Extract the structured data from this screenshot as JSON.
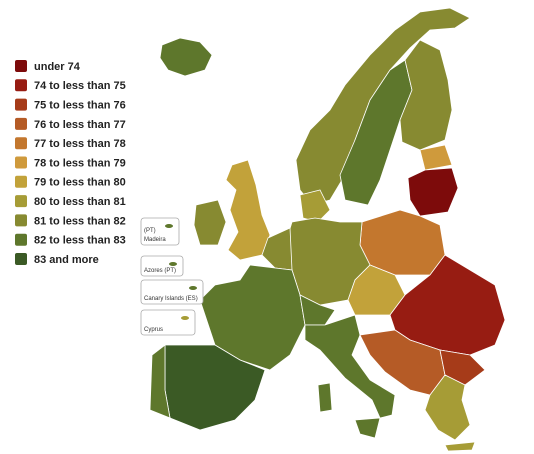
{
  "legend": {
    "items": [
      {
        "label": "under 74",
        "color": "#7d0b0b"
      },
      {
        "label": "74 to less than 75",
        "color": "#971c12"
      },
      {
        "label": "75 to less than 76",
        "color": "#a63b19"
      },
      {
        "label": "76 to less than 77",
        "color": "#b55b26"
      },
      {
        "label": "77 to less than 78",
        "color": "#c3772e"
      },
      {
        "label": "78 to less than 79",
        "color": "#cf9a3c"
      },
      {
        "label": "79 to less than 80",
        "color": "#c2a23a"
      },
      {
        "label": "80 to less than 81",
        "color": "#a69c36"
      },
      {
        "label": "81 to less than 82",
        "color": "#878a31"
      },
      {
        "label": "82 to less than 83",
        "color": "#5e772c"
      },
      {
        "label": "83 and more",
        "color": "#3b5a25"
      }
    ]
  },
  "insets": [
    {
      "lines": [
        "(PT)",
        "Madeira"
      ]
    },
    {
      "lines": [
        "Azores (PT)"
      ]
    },
    {
      "lines": [
        "Canary Islands (ES)"
      ]
    },
    {
      "lines": [
        "Cyprus"
      ]
    }
  ]
}
